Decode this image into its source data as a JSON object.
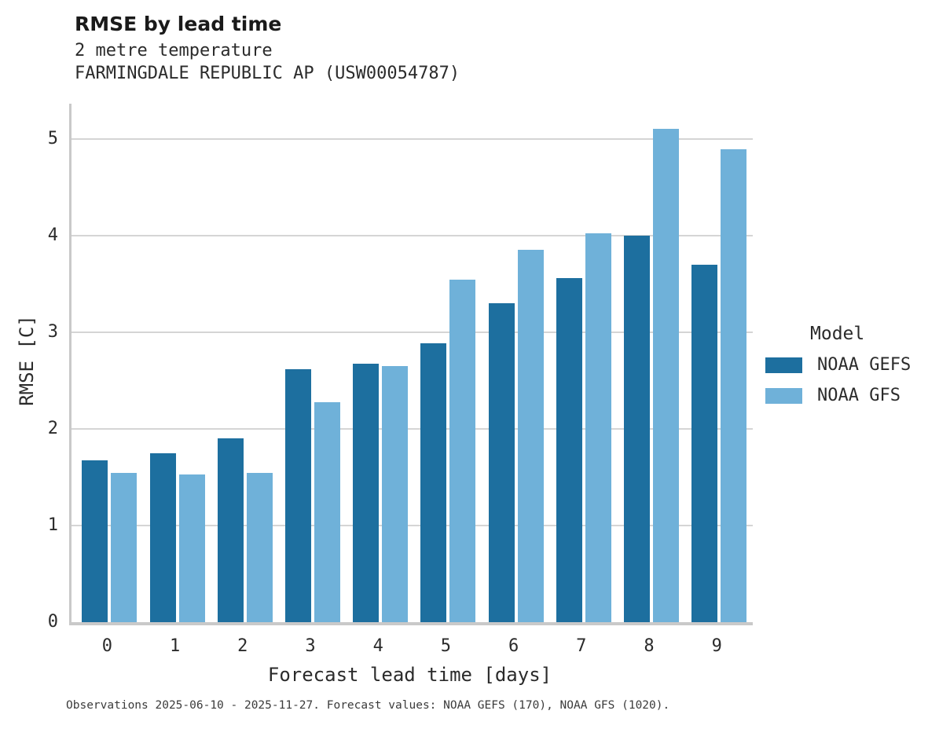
{
  "header": {
    "title": "RMSE by lead time",
    "subtitle_line1": "2 metre temperature",
    "subtitle_line2": "FARMINGDALE REPUBLIC AP (USW00054787)"
  },
  "chart_data": {
    "type": "bar",
    "title": "RMSE by lead time",
    "subtitle": [
      "2 metre temperature",
      "FARMINGDALE REPUBLIC AP (USW00054787)"
    ],
    "categories": [
      "0",
      "1",
      "2",
      "3",
      "4",
      "5",
      "6",
      "7",
      "8",
      "9"
    ],
    "series": [
      {
        "name": "NOAA GEFS",
        "color": "#1d6f9f",
        "values": [
          1.68,
          1.75,
          1.9,
          2.62,
          2.68,
          2.89,
          3.3,
          3.56,
          4.0,
          3.7
        ]
      },
      {
        "name": "NOAA GFS",
        "color": "#6fb1d9",
        "values": [
          1.55,
          1.53,
          1.55,
          2.28,
          2.65,
          3.55,
          3.86,
          4.03,
          5.11,
          4.9
        ]
      }
    ],
    "xlabel": "Forecast lead time [days]",
    "ylabel": "RMSE [C]",
    "ylim": [
      0,
      5.37
    ],
    "yticks": [
      0,
      1,
      2,
      3,
      4,
      5
    ],
    "grid": true,
    "grid_color": "#d5d5d5",
    "spine_color": "#c9c9c9",
    "legend_title": "Model",
    "legend_position": "right"
  },
  "footer": {
    "note": "Observations 2025-06-10 - 2025-11-27. Forecast values: NOAA GEFS (170), NOAA GFS (1020)."
  }
}
